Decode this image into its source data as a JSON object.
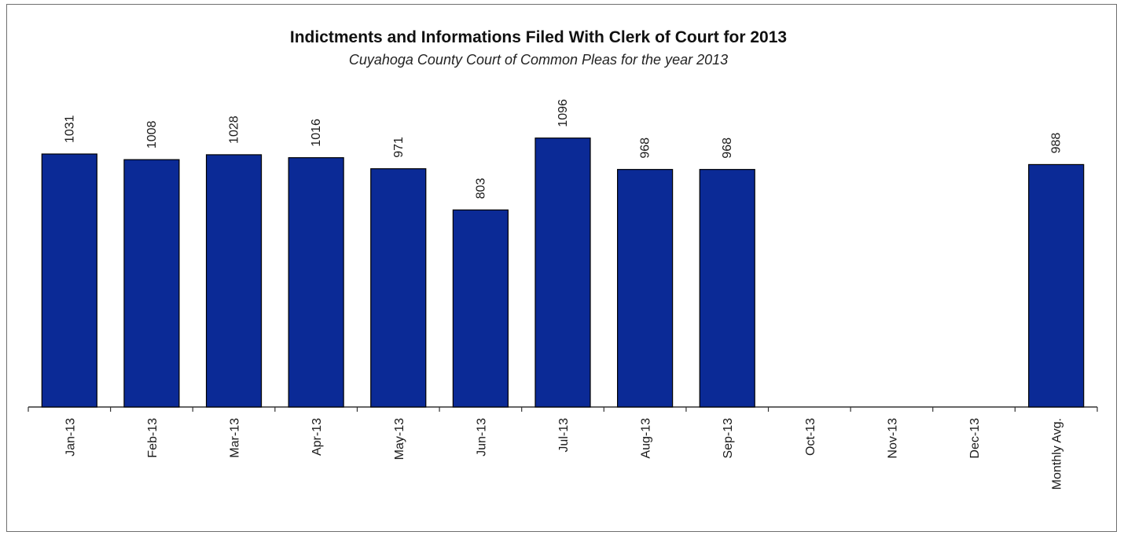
{
  "chart_data": {
    "type": "bar",
    "title": "Indictments and Informations  Filed With Clerk of Court for 2013",
    "subtitle": "Cuyahoga  County Court of Common Pleas for the year 2013",
    "categories": [
      "Jan-13",
      "Feb-13",
      "Mar-13",
      "Apr-13",
      "May-13",
      "Jun-13",
      "Jul-13",
      "Aug-13",
      "Sep-13",
      "Oct-13",
      "Nov-13",
      "Dec-13",
      "Monthly Avg."
    ],
    "values": [
      1031,
      1008,
      1028,
      1016,
      971,
      803,
      1096,
      968,
      968,
      null,
      null,
      null,
      988
    ],
    "data_labels": [
      "1031",
      "1008",
      "1028",
      "1016",
      "971",
      "803",
      "1096",
      "968",
      "968",
      "",
      "",
      "",
      "988"
    ],
    "xlabel": "",
    "ylabel": "",
    "ylim": [
      0,
      1100
    ],
    "grid": false,
    "legend": "none",
    "bar_color": "#0b2a96",
    "bar_edge_color": "#000000"
  }
}
